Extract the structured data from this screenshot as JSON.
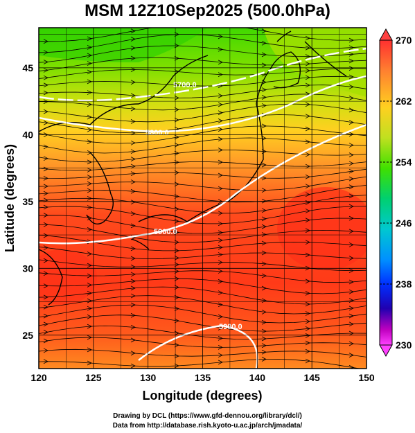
{
  "title": "MSM 12Z10Sep2025 (500.0hPa)",
  "axes": {
    "xlabel": "Longitude (degrees)",
    "ylabel": "Latitude  (degrees)",
    "x_ticks": [
      "120",
      "125",
      "130",
      "135",
      "140",
      "145",
      "150"
    ],
    "y_ticks": [
      "25",
      "30",
      "35",
      "40",
      "45"
    ]
  },
  "colorbar": {
    "ticks": [
      "270",
      "262",
      "254",
      "246",
      "238",
      "230"
    ],
    "colors": [
      "#ff4040",
      "#ff8030",
      "#ffc020",
      "#e0e020",
      "#60e000",
      "#00d060",
      "#00c0c0",
      "#00a0ff",
      "#0040ff",
      "#2000c0",
      "#c000c0",
      "#ff40ff"
    ]
  },
  "contours": {
    "labels": [
      "5700.0",
      "5800.0",
      "5900.0",
      "5900.0"
    ],
    "color": "#ffffff"
  },
  "chart_data": {
    "type": "heatmap",
    "title": "MSM 12Z10Sep2025 (500.0hPa)",
    "xlabel": "Longitude (degrees)",
    "ylabel": "Latitude  (degrees)",
    "xlim": [
      120,
      150
    ],
    "ylim": [
      22.5,
      48
    ],
    "x_ticks": [
      120,
      125,
      130,
      135,
      140,
      145,
      150
    ],
    "y_ticks": [
      25,
      30,
      35,
      40,
      45
    ],
    "colorbar_range": [
      230,
      270
    ],
    "colorbar_ticks": [
      270,
      262,
      254,
      246,
      238,
      230
    ],
    "contour_values": [
      5700.0,
      5800.0,
      5900.0,
      5900.0
    ],
    "grid": true
  },
  "credits": {
    "line1": "Drawing by DCL (https://www.gfd-dennou.org/library/dcl/)",
    "line2": "Data from http://database.rish.kyoto-u.ac.jp/arch/jmadata/"
  }
}
